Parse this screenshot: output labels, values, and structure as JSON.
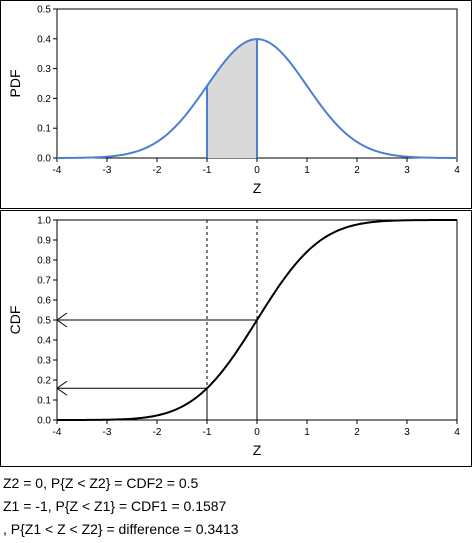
{
  "chart_data": [
    {
      "type": "area",
      "xlabel": "Z",
      "ylabel": "PDF",
      "xlim": [
        -4,
        4
      ],
      "ylim": [
        0,
        0.5
      ],
      "x_ticks": [
        "-4",
        "-3",
        "-2",
        "-1",
        "0",
        "1",
        "2",
        "3",
        "4"
      ],
      "y_ticks": [
        "0.0",
        "0.1",
        "0.2",
        "0.3",
        "0.4",
        "0.5"
      ],
      "curve": "standard normal density",
      "shaded_range": [
        -1,
        0
      ],
      "vertical_lines": [
        -1,
        0
      ],
      "line_color": "#4a7fd6",
      "fill_color": "#d9d9d9",
      "grid": false
    },
    {
      "type": "line",
      "xlabel": "Z",
      "ylabel": "CDF",
      "xlim": [
        -4,
        4
      ],
      "ylim": [
        0,
        1
      ],
      "x_ticks": [
        "-4",
        "-3",
        "-2",
        "-1",
        "0",
        "1",
        "2",
        "3",
        "4"
      ],
      "y_ticks": [
        "0.0",
        "0.1",
        "0.2",
        "0.3",
        "0.4",
        "0.5",
        "0.6",
        "0.7",
        "0.8",
        "0.9",
        "1.0"
      ],
      "curve": "standard normal cumulative distribution",
      "markers": [
        {
          "z": -1,
          "cdf": 0.1587
        },
        {
          "z": 0,
          "cdf": 0.5
        }
      ],
      "line_color": "#000000",
      "grid": false
    }
  ],
  "results": [
    "Z2 = 0, P{Z < Z2} =  CDF2 = 0.5",
    "Z1 = -1, P{Z < Z1} =  CDF1 = 0.1587",
    ", P{Z1 < Z < Z2} =  difference = 0.3413"
  ]
}
